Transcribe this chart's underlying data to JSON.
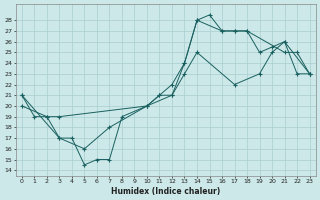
{
  "xlabel": "Humidex (Indice chaleur)",
  "xlim": [
    -0.5,
    23.5
  ],
  "ylim": [
    13.5,
    29.5
  ],
  "yticks": [
    14,
    15,
    16,
    17,
    18,
    19,
    20,
    21,
    22,
    23,
    24,
    25,
    26,
    27,
    28
  ],
  "xticks": [
    0,
    1,
    2,
    3,
    4,
    5,
    6,
    7,
    8,
    9,
    10,
    11,
    12,
    13,
    14,
    15,
    16,
    17,
    18,
    19,
    20,
    21,
    22,
    23
  ],
  "xtick_labels": [
    "0",
    "1",
    "2",
    "3",
    "4",
    "5",
    "6",
    "7",
    "8",
    "9",
    "10",
    "11",
    "12",
    "13",
    "14",
    "15",
    "16",
    "17",
    "18",
    "19",
    "20",
    "21",
    "22",
    "23"
  ],
  "bg_color": "#cce8e8",
  "grid_color": "#aacece",
  "line_color": "#1a6060",
  "line1_x": [
    0,
    1,
    2,
    3,
    4,
    5,
    6,
    7,
    8,
    12,
    13,
    14,
    15,
    16,
    17,
    18,
    21,
    22,
    23
  ],
  "line1_y": [
    21,
    19,
    19,
    17,
    17,
    14.5,
    15,
    15,
    19,
    21,
    24,
    28,
    28.5,
    27,
    27,
    27,
    25,
    25,
    23
  ],
  "line2_x": [
    0,
    2,
    3,
    10,
    11,
    12,
    13,
    14,
    17,
    19,
    20,
    21,
    22,
    23
  ],
  "line2_y": [
    20,
    19,
    19,
    20,
    21,
    21,
    23,
    25,
    22,
    23,
    25,
    26,
    23,
    23
  ],
  "line3_x": [
    0,
    3,
    5,
    7,
    10,
    11,
    12,
    13,
    14,
    16,
    17,
    18,
    19,
    20,
    21,
    23
  ],
  "line3_y": [
    21,
    17,
    16,
    18,
    20,
    21,
    22,
    24,
    28,
    27,
    27,
    27,
    25,
    25.5,
    26,
    23
  ]
}
